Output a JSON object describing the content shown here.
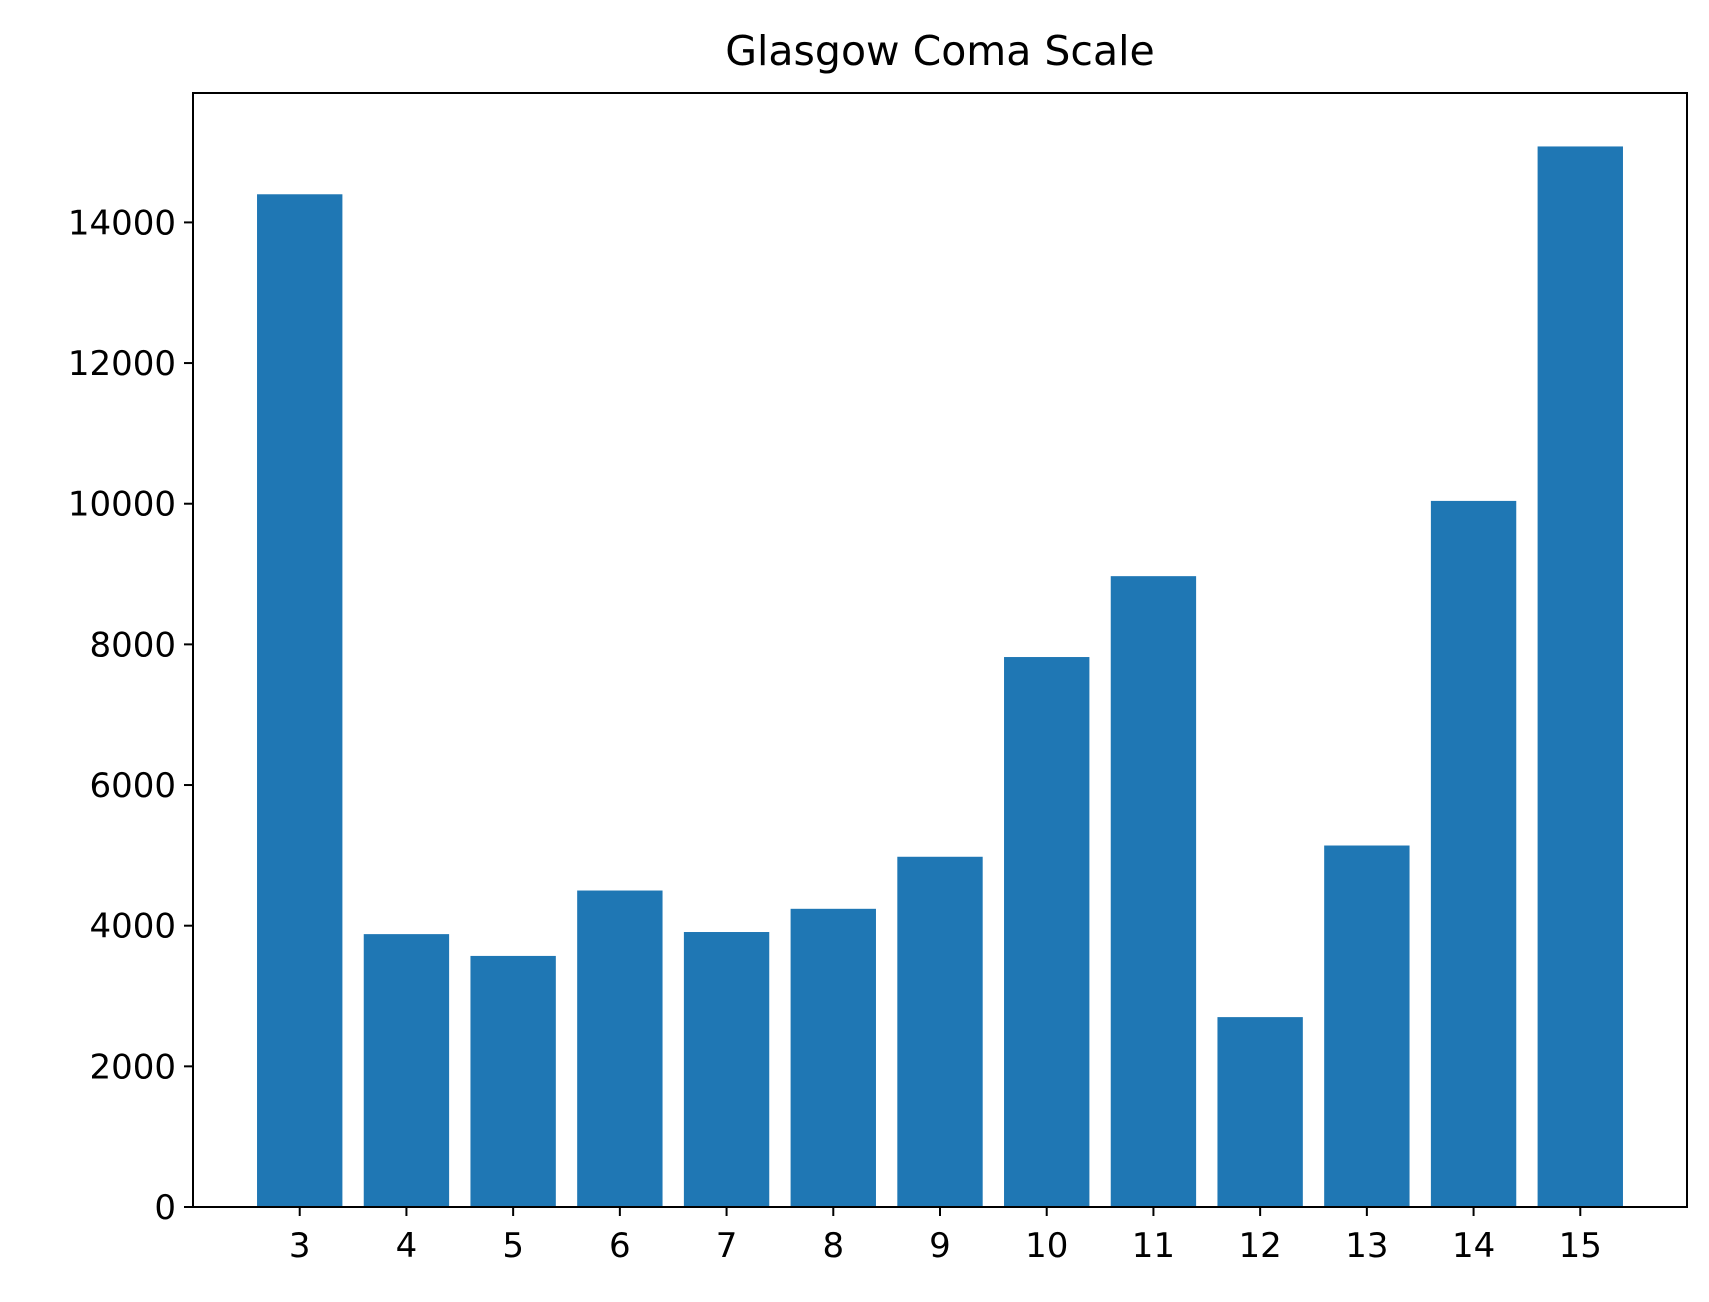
{
  "chart_data": {
    "type": "bar",
    "title": "Glasgow Coma Scale",
    "xlabel": "",
    "ylabel": "",
    "categories": [
      "3",
      "4",
      "5",
      "6",
      "7",
      "8",
      "9",
      "10",
      "11",
      "12",
      "13",
      "14",
      "15"
    ],
    "values": [
      14400,
      3880,
      3570,
      4500,
      3910,
      4240,
      4980,
      7820,
      8970,
      2700,
      5140,
      10040,
      15080
    ],
    "xlim": [
      2.0,
      16.0
    ],
    "ylim": [
      0,
      15840
    ],
    "yticks": [
      0,
      2000,
      4000,
      6000,
      8000,
      10000,
      12000,
      14000
    ],
    "bar_width": 0.8,
    "grid": false,
    "legend": "none",
    "colors": {
      "bar": "#1f77b4",
      "axis": "#000000",
      "background": "#ffffff"
    }
  }
}
